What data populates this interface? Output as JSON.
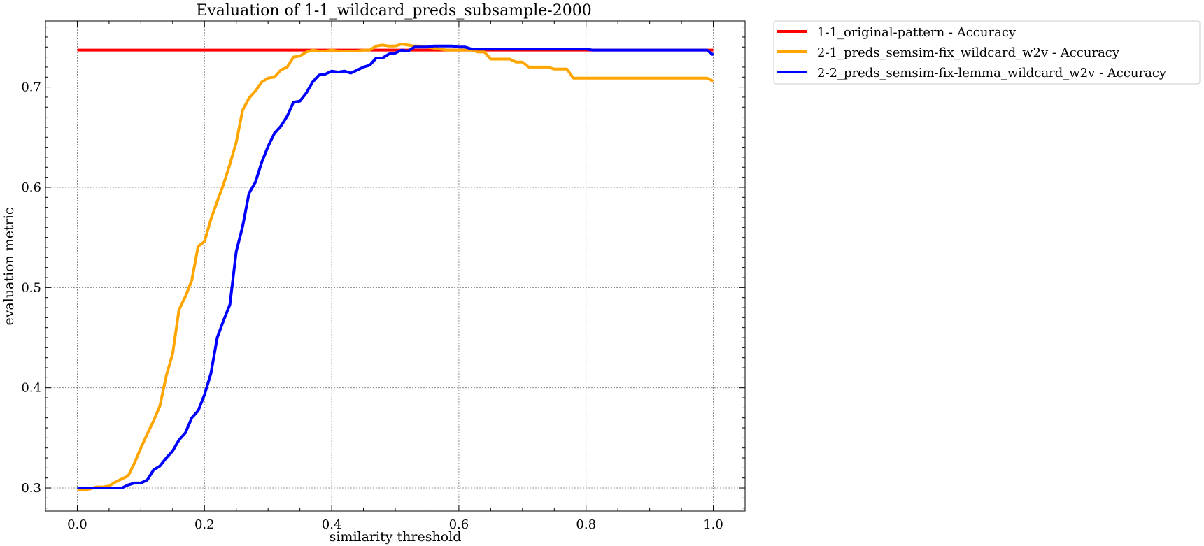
{
  "chart_data": {
    "type": "line",
    "title": "Evaluation of 1-1_wildcard_preds_subsample-2000",
    "xlabel": "similarity threshold",
    "ylabel": "evaluation metric",
    "xlim": [
      -0.05,
      1.05
    ],
    "ylim": [
      0.277,
      0.766
    ],
    "xticks": [
      0.0,
      0.2,
      0.4,
      0.6,
      0.8,
      1.0
    ],
    "xtick_labels": [
      "0.0",
      "0.2",
      "0.4",
      "0.6",
      "0.8",
      "1.0"
    ],
    "yticks": [
      0.3,
      0.4,
      0.5,
      0.6,
      0.7
    ],
    "ytick_labels": [
      "0.3",
      "0.4",
      "0.5",
      "0.6",
      "0.7"
    ],
    "grid": true,
    "legend_placement": "outside-top-right",
    "series": [
      {
        "name": "1-1_original-pattern - Accuracy",
        "color": "#ff0000",
        "points": [
          [
            0.0,
            0.737
          ],
          [
            1.0,
            0.737
          ]
        ]
      },
      {
        "name": "2-1_preds_semsim-fix_wildcard_w2v - Accuracy",
        "color": "#ffa500",
        "points": [
          [
            0.0,
            0.298
          ],
          [
            0.01,
            0.298
          ],
          [
            0.02,
            0.299
          ],
          [
            0.03,
            0.301
          ],
          [
            0.04,
            0.301
          ],
          [
            0.05,
            0.302
          ],
          [
            0.06,
            0.306
          ],
          [
            0.07,
            0.309
          ],
          [
            0.08,
            0.312
          ],
          [
            0.09,
            0.325
          ],
          [
            0.1,
            0.34
          ],
          [
            0.11,
            0.354
          ],
          [
            0.12,
            0.367
          ],
          [
            0.13,
            0.382
          ],
          [
            0.14,
            0.412
          ],
          [
            0.15,
            0.434
          ],
          [
            0.16,
            0.478
          ],
          [
            0.17,
            0.491
          ],
          [
            0.18,
            0.507
          ],
          [
            0.19,
            0.541
          ],
          [
            0.2,
            0.546
          ],
          [
            0.21,
            0.568
          ],
          [
            0.22,
            0.586
          ],
          [
            0.23,
            0.603
          ],
          [
            0.24,
            0.623
          ],
          [
            0.25,
            0.645
          ],
          [
            0.26,
            0.677
          ],
          [
            0.27,
            0.689
          ],
          [
            0.28,
            0.696
          ],
          [
            0.29,
            0.705
          ],
          [
            0.3,
            0.709
          ],
          [
            0.31,
            0.71
          ],
          [
            0.32,
            0.717
          ],
          [
            0.33,
            0.72
          ],
          [
            0.34,
            0.73
          ],
          [
            0.35,
            0.731
          ],
          [
            0.36,
            0.735
          ],
          [
            0.37,
            0.737
          ],
          [
            0.38,
            0.736
          ],
          [
            0.39,
            0.736
          ],
          [
            0.4,
            0.737
          ],
          [
            0.41,
            0.736
          ],
          [
            0.42,
            0.736
          ],
          [
            0.43,
            0.736
          ],
          [
            0.44,
            0.736
          ],
          [
            0.45,
            0.737
          ],
          [
            0.46,
            0.737
          ],
          [
            0.47,
            0.741
          ],
          [
            0.48,
            0.742
          ],
          [
            0.49,
            0.741
          ],
          [
            0.5,
            0.741
          ],
          [
            0.51,
            0.743
          ],
          [
            0.52,
            0.742
          ],
          [
            0.53,
            0.741
          ],
          [
            0.54,
            0.741
          ],
          [
            0.55,
            0.74
          ],
          [
            0.56,
            0.739
          ],
          [
            0.57,
            0.738
          ],
          [
            0.58,
            0.737
          ],
          [
            0.59,
            0.737
          ],
          [
            0.6,
            0.737
          ],
          [
            0.61,
            0.737
          ],
          [
            0.62,
            0.737
          ],
          [
            0.63,
            0.735
          ],
          [
            0.64,
            0.735
          ],
          [
            0.65,
            0.728
          ],
          [
            0.66,
            0.728
          ],
          [
            0.67,
            0.728
          ],
          [
            0.68,
            0.728
          ],
          [
            0.69,
            0.725
          ],
          [
            0.7,
            0.725
          ],
          [
            0.71,
            0.72
          ],
          [
            0.72,
            0.72
          ],
          [
            0.73,
            0.72
          ],
          [
            0.74,
            0.72
          ],
          [
            0.75,
            0.718
          ],
          [
            0.76,
            0.718
          ],
          [
            0.77,
            0.718
          ],
          [
            0.78,
            0.709
          ],
          [
            0.79,
            0.709
          ],
          [
            0.8,
            0.709
          ],
          [
            0.85,
            0.709
          ],
          [
            0.9,
            0.709
          ],
          [
            0.95,
            0.709
          ],
          [
            0.99,
            0.709
          ],
          [
            1.0,
            0.706
          ]
        ]
      },
      {
        "name": "2-2_preds_semsim-fix-lemma_wildcard_w2v - Accuracy",
        "color": "#0000ff",
        "points": [
          [
            0.0,
            0.3
          ],
          [
            0.01,
            0.3
          ],
          [
            0.02,
            0.3
          ],
          [
            0.03,
            0.3
          ],
          [
            0.04,
            0.3
          ],
          [
            0.05,
            0.3
          ],
          [
            0.06,
            0.3
          ],
          [
            0.07,
            0.3
          ],
          [
            0.08,
            0.303
          ],
          [
            0.09,
            0.305
          ],
          [
            0.1,
            0.305
          ],
          [
            0.11,
            0.308
          ],
          [
            0.12,
            0.318
          ],
          [
            0.13,
            0.322
          ],
          [
            0.14,
            0.33
          ],
          [
            0.15,
            0.337
          ],
          [
            0.16,
            0.348
          ],
          [
            0.17,
            0.355
          ],
          [
            0.18,
            0.37
          ],
          [
            0.19,
            0.377
          ],
          [
            0.2,
            0.393
          ],
          [
            0.21,
            0.414
          ],
          [
            0.22,
            0.45
          ],
          [
            0.23,
            0.467
          ],
          [
            0.24,
            0.483
          ],
          [
            0.25,
            0.536
          ],
          [
            0.26,
            0.561
          ],
          [
            0.27,
            0.594
          ],
          [
            0.28,
            0.605
          ],
          [
            0.29,
            0.625
          ],
          [
            0.3,
            0.641
          ],
          [
            0.31,
            0.654
          ],
          [
            0.32,
            0.661
          ],
          [
            0.33,
            0.671
          ],
          [
            0.34,
            0.685
          ],
          [
            0.35,
            0.686
          ],
          [
            0.36,
            0.694
          ],
          [
            0.37,
            0.705
          ],
          [
            0.38,
            0.712
          ],
          [
            0.39,
            0.713
          ],
          [
            0.4,
            0.716
          ],
          [
            0.41,
            0.715
          ],
          [
            0.42,
            0.716
          ],
          [
            0.43,
            0.714
          ],
          [
            0.44,
            0.717
          ],
          [
            0.45,
            0.72
          ],
          [
            0.46,
            0.722
          ],
          [
            0.47,
            0.729
          ],
          [
            0.48,
            0.729
          ],
          [
            0.49,
            0.733
          ],
          [
            0.5,
            0.734
          ],
          [
            0.51,
            0.737
          ],
          [
            0.52,
            0.736
          ],
          [
            0.53,
            0.74
          ],
          [
            0.54,
            0.74
          ],
          [
            0.55,
            0.74
          ],
          [
            0.56,
            0.741
          ],
          [
            0.57,
            0.741
          ],
          [
            0.58,
            0.741
          ],
          [
            0.59,
            0.741
          ],
          [
            0.6,
            0.74
          ],
          [
            0.61,
            0.74
          ],
          [
            0.62,
            0.738
          ],
          [
            0.65,
            0.738
          ],
          [
            0.7,
            0.738
          ],
          [
            0.75,
            0.738
          ],
          [
            0.8,
            0.738
          ],
          [
            0.81,
            0.737
          ],
          [
            0.85,
            0.737
          ],
          [
            0.9,
            0.737
          ],
          [
            0.95,
            0.737
          ],
          [
            0.99,
            0.737
          ],
          [
            1.0,
            0.732
          ]
        ]
      }
    ]
  }
}
